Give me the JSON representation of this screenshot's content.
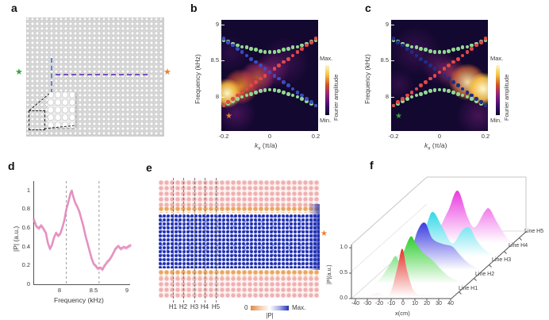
{
  "panels": {
    "a": {
      "label": "a",
      "markers": {
        "left_star": "green-star",
        "right_star": "orange-star",
        "scan_line_vertical": "blue-dashed",
        "scan_line_horizontal": "purple-dashed",
        "inset": "zoomed pillar array"
      }
    },
    "b": {
      "label": "b",
      "ylabel": "Frequency (kHz)",
      "yticks": [
        "9",
        "8.5",
        "8"
      ],
      "xticks": [
        "-0.2",
        "0",
        "0.2"
      ],
      "xlabel_k": "k",
      "xlabel_sub": "x",
      "xlabel_unit": "(π/a)",
      "cbar_max": "Max.",
      "cbar_min": "Min.",
      "cbar_label": "Fourier amplitude",
      "corner_star": "orange"
    },
    "c": {
      "label": "c",
      "ylabel": "Frequency (kHz)",
      "yticks": [
        "9",
        "8.5",
        "8"
      ],
      "xticks": [
        "-0.2",
        "0",
        "0.2"
      ],
      "xlabel_k": "k",
      "xlabel_sub": "x",
      "xlabel_unit": "(π/a)",
      "cbar_max": "Max.",
      "cbar_min": "Min.",
      "cbar_label": "Fourier amplitude",
      "corner_star": "green"
    },
    "d": {
      "label": "d",
      "ylabel": "|P| (a.u.)",
      "yticks": [
        "1",
        "0.8",
        "0.6",
        "0.4",
        "0.2",
        "0"
      ],
      "xticks": [
        "8",
        "8.5",
        "9"
      ],
      "xlabel": "Frequency (kHz)"
    },
    "e": {
      "label": "e",
      "h_labels": [
        "H1",
        "H2",
        "H3",
        "H4",
        "H5"
      ],
      "cbar_zero": "0",
      "cbar_max": "Max.",
      "cbar_label": "|P|",
      "corner_star": "orange"
    },
    "f": {
      "label": "f",
      "ylabel": "|P|(a.u.)",
      "yticks": [
        "1.0",
        "0.5",
        "0.0"
      ],
      "xticks": [
        "-40",
        "-30",
        "-20",
        "-10",
        "0",
        "10",
        "20",
        "30",
        "40"
      ],
      "xlabel": "x(cm)",
      "line_labels": [
        "Line H1",
        "Line H2",
        "Line H3",
        "Line H4",
        "Line H5"
      ]
    }
  },
  "colors": {
    "green_star": "#3da23d",
    "orange_star": "#ed7d31",
    "band_green": "#92d892",
    "branch_red": "#e04848",
    "branch_blue_b": "#3a4cc0",
    "branch_blue_c": "#1e2d86",
    "pink_curve": "#e28abc",
    "lattice_pink": "#f0b0b0",
    "lattice_orange": "#eaa660",
    "field_blue": "#1c2cae"
  },
  "chart_data": [
    {
      "panel": "b",
      "type": "heatmap",
      "xlabel": "k_x (π/a)",
      "ylabel": "Frequency (kHz)",
      "xlim": [
        -0.21,
        0.21
      ],
      "ylim": [
        7.55,
        9.08
      ],
      "colorbar": {
        "max": "Max.",
        "min": "Min.",
        "label": "Fourier amplitude"
      },
      "hotspot": "bright lobe at negative k_x, 7.9-8.5 kHz",
      "k": [
        -0.2,
        -0.18,
        -0.16,
        -0.14,
        -0.12,
        -0.1,
        -0.08,
        -0.06,
        -0.04,
        -0.02,
        0,
        0.02,
        0.04,
        0.06,
        0.08,
        0.1,
        0.12,
        0.14,
        0.16,
        0.18,
        0.2
      ],
      "series": [
        {
          "name": "upper-band",
          "color": "#92d892",
          "values": [
            8.78,
            8.76,
            8.73,
            8.71,
            8.69,
            8.68,
            8.66,
            8.65,
            8.63,
            8.62,
            8.62,
            8.62,
            8.63,
            8.65,
            8.66,
            8.68,
            8.69,
            8.71,
            8.73,
            8.76,
            8.78
          ]
        },
        {
          "name": "lower-band",
          "color": "#92d892",
          "values": [
            7.88,
            7.91,
            7.94,
            7.97,
            8.0,
            8.02,
            8.04,
            8.06,
            8.08,
            8.09,
            8.1,
            8.09,
            8.08,
            8.06,
            8.04,
            8.02,
            8.0,
            7.97,
            7.94,
            7.91,
            7.88
          ]
        },
        {
          "name": "red-branch",
          "color": "#e04848",
          "values": [
            7.88,
            7.93,
            7.97,
            8.02,
            8.06,
            8.11,
            8.16,
            8.2,
            8.25,
            8.29,
            8.34,
            8.39,
            8.43,
            8.48,
            8.52,
            8.57,
            8.62,
            8.66,
            8.71,
            8.75,
            8.8
          ]
        },
        {
          "name": "blue-branch",
          "color": "#3a4cc0",
          "values": [
            8.8,
            8.75,
            8.71,
            8.66,
            8.62,
            8.57,
            8.52,
            8.48,
            8.43,
            8.39,
            8.34,
            8.29,
            8.25,
            8.2,
            8.16,
            8.11,
            8.06,
            8.02,
            7.97,
            7.93,
            7.88
          ]
        }
      ]
    },
    {
      "panel": "c",
      "type": "heatmap",
      "xlabel": "k_x (π/a)",
      "ylabel": "Frequency (kHz)",
      "xlim": [
        -0.21,
        0.21
      ],
      "ylim": [
        7.55,
        9.08
      ],
      "colorbar": {
        "max": "Max.",
        "min": "Min.",
        "label": "Fourier amplitude"
      },
      "hotspot": "bright lobe at positive k_x, 7.9-8.5 kHz",
      "k": [
        -0.2,
        -0.18,
        -0.16,
        -0.14,
        -0.12,
        -0.1,
        -0.08,
        -0.06,
        -0.04,
        -0.02,
        0,
        0.02,
        0.04,
        0.06,
        0.08,
        0.1,
        0.12,
        0.14,
        0.16,
        0.18,
        0.2
      ],
      "series": [
        {
          "name": "upper-band",
          "color": "#92d892",
          "values": [
            8.78,
            8.76,
            8.73,
            8.71,
            8.69,
            8.68,
            8.66,
            8.65,
            8.63,
            8.62,
            8.62,
            8.62,
            8.63,
            8.65,
            8.66,
            8.68,
            8.69,
            8.71,
            8.73,
            8.76,
            8.78
          ]
        },
        {
          "name": "lower-band",
          "color": "#92d892",
          "values": [
            7.88,
            7.91,
            7.94,
            7.97,
            8.0,
            8.02,
            8.04,
            8.06,
            8.08,
            8.09,
            8.1,
            8.09,
            8.08,
            8.06,
            8.04,
            8.02,
            8.0,
            7.97,
            7.94,
            7.91,
            7.88
          ]
        },
        {
          "name": "blue-branch",
          "color": "#1e2d86",
          "values": [
            8.8,
            8.75,
            8.71,
            8.66,
            8.62,
            8.57,
            8.52,
            8.48,
            8.43,
            8.39,
            8.34,
            8.29,
            8.25,
            8.2,
            8.16,
            8.11,
            8.06,
            8.02,
            7.97,
            7.93,
            7.88
          ]
        },
        {
          "name": "red-branch",
          "color": "#e04848",
          "values": [
            7.88,
            7.93,
            7.97,
            8.02,
            8.06,
            8.11,
            8.16,
            8.2,
            8.25,
            8.29,
            8.34,
            8.39,
            8.43,
            8.48,
            8.52,
            8.57,
            8.62,
            8.66,
            8.71,
            8.75,
            8.8
          ]
        }
      ]
    },
    {
      "panel": "d",
      "type": "line",
      "xlabel": "Frequency (kHz)",
      "ylabel": "|P| (a.u.)",
      "xlim": [
        7.6,
        9.05
      ],
      "ylim": [
        0,
        1.05
      ],
      "color": "#e28abc",
      "dashed_lines_x": [
        8.1,
        8.58
      ],
      "x": [
        7.62,
        7.66,
        7.7,
        7.73,
        7.76,
        7.8,
        7.83,
        7.86,
        7.89,
        7.92,
        7.95,
        7.98,
        8.01,
        8.04,
        8.07,
        8.1,
        8.13,
        8.16,
        8.18,
        8.2,
        8.23,
        8.26,
        8.29,
        8.32,
        8.35,
        8.38,
        8.41,
        8.44,
        8.47,
        8.5,
        8.53,
        8.56,
        8.6,
        8.63,
        8.66,
        8.7,
        8.74,
        8.78,
        8.82,
        8.86,
        8.9,
        8.94,
        8.98,
        9.02,
        9.05
      ],
      "y": [
        0.7,
        0.62,
        0.6,
        0.63,
        0.6,
        0.55,
        0.44,
        0.38,
        0.42,
        0.5,
        0.55,
        0.52,
        0.54,
        0.6,
        0.68,
        0.8,
        0.88,
        0.97,
        1.0,
        0.94,
        0.87,
        0.83,
        0.78,
        0.7,
        0.62,
        0.52,
        0.44,
        0.36,
        0.28,
        0.22,
        0.2,
        0.17,
        0.18,
        0.16,
        0.2,
        0.24,
        0.27,
        0.32,
        0.38,
        0.41,
        0.38,
        0.4,
        0.39,
        0.41,
        0.42
      ]
    },
    {
      "panel": "f",
      "type": "area",
      "xlabel": "x(cm)",
      "ylabel": "|P|(a.u.)",
      "xlim": [
        -40,
        40
      ],
      "ylim": [
        0,
        1
      ],
      "lines": [
        {
          "name": "Line H1",
          "color": "#e53228",
          "points": [
            [
              -40,
              0
            ],
            [
              -28,
              0.02
            ],
            [
              -20,
              0.08
            ],
            [
              -16,
              0.03
            ],
            [
              -10,
              0.06
            ],
            [
              -4,
              0.55
            ],
            [
              0,
              0.92
            ],
            [
              4,
              0.5
            ],
            [
              10,
              0.1
            ],
            [
              20,
              0.03
            ],
            [
              40,
              0
            ]
          ]
        },
        {
          "name": "Line H2",
          "color": "#2ecc2e",
          "points": [
            [
              -40,
              0
            ],
            [
              -32,
              0.05
            ],
            [
              -24,
              0.3
            ],
            [
              -18,
              0.52
            ],
            [
              -14,
              0.45
            ],
            [
              -6,
              0.88
            ],
            [
              -2,
              0.8
            ],
            [
              4,
              0.6
            ],
            [
              12,
              0.45
            ],
            [
              20,
              0.25
            ],
            [
              28,
              0.1
            ],
            [
              40,
              0
            ]
          ]
        },
        {
          "name": "Line H3",
          "color": "#3a3ae0",
          "points": [
            [
              -40,
              0
            ],
            [
              -32,
              0.03
            ],
            [
              -20,
              0.2
            ],
            [
              -12,
              0.75
            ],
            [
              -6,
              0.9
            ],
            [
              0,
              0.6
            ],
            [
              8,
              0.5
            ],
            [
              16,
              0.45
            ],
            [
              22,
              0.3
            ],
            [
              30,
              0.12
            ],
            [
              40,
              0
            ]
          ]
        },
        {
          "name": "Line H4",
          "color": "#35d8e8",
          "points": [
            [
              -40,
              0
            ],
            [
              -28,
              0.1
            ],
            [
              -18,
              0.55
            ],
            [
              -12,
              0.85
            ],
            [
              -4,
              0.55
            ],
            [
              4,
              0.25
            ],
            [
              12,
              0.5
            ],
            [
              18,
              0.55
            ],
            [
              24,
              0.3
            ],
            [
              32,
              0.1
            ],
            [
              40,
              0
            ]
          ]
        },
        {
          "name": "Line H5",
          "color": "#ea3ae0",
          "points": [
            [
              -40,
              0
            ],
            [
              -24,
              0.1
            ],
            [
              -12,
              0.6
            ],
            [
              -4,
              1.0
            ],
            [
              4,
              0.5
            ],
            [
              10,
              0.3
            ],
            [
              18,
              0.6
            ],
            [
              22,
              0.65
            ],
            [
              28,
              0.4
            ],
            [
              36,
              0.1
            ],
            [
              40,
              0
            ]
          ]
        }
      ]
    }
  ]
}
